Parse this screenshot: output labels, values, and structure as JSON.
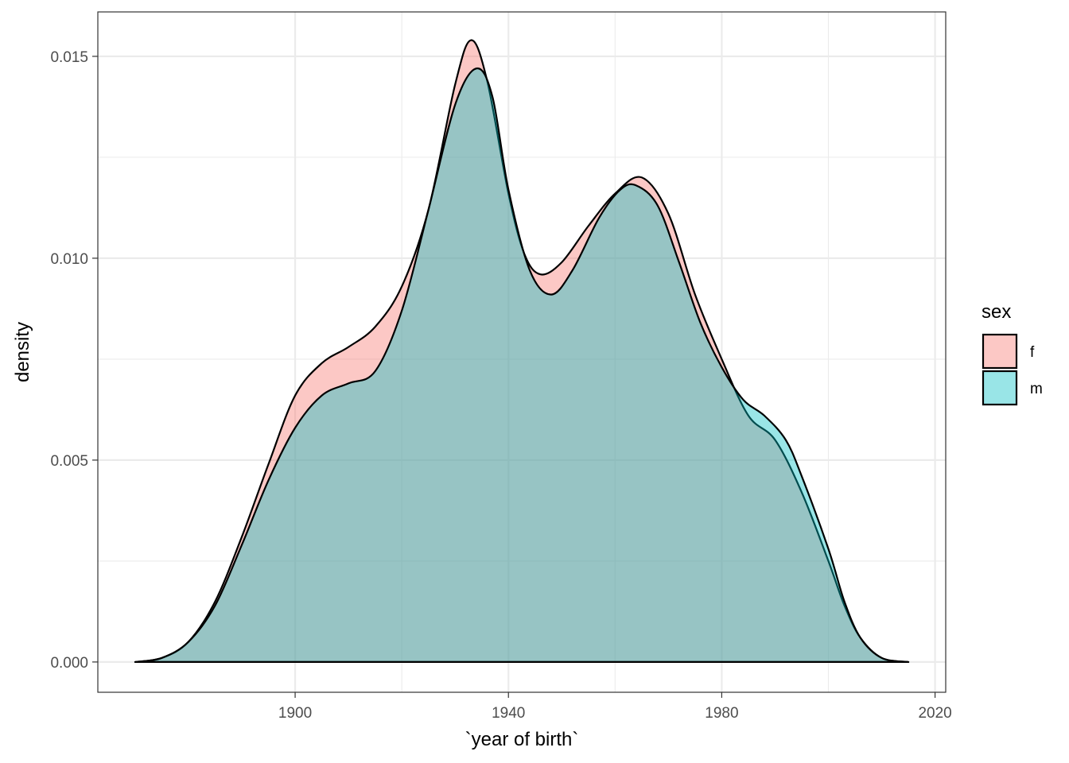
{
  "chart_data": {
    "type": "area",
    "subtype": "density",
    "xlabel": "`year of birth`",
    "ylabel": "density",
    "xlim": [
      1863,
      2022
    ],
    "ylim": [
      -0.00075,
      0.0161
    ],
    "x_ticks": [
      1900,
      1940,
      1980,
      2020
    ],
    "x_tick_labels": [
      "1900",
      "1940",
      "1980",
      "2020"
    ],
    "y_ticks": [
      0.0,
      0.005,
      0.01,
      0.015
    ],
    "y_tick_labels": [
      "0.000",
      "0.005",
      "0.010",
      "0.015"
    ],
    "grid": true,
    "legend": {
      "title": "sex",
      "position": "right"
    },
    "series": [
      {
        "name": "f",
        "color": "#F8766D",
        "points": [
          [
            1870,
            0.0
          ],
          [
            1875,
            0.0001
          ],
          [
            1880,
            0.0005
          ],
          [
            1885,
            0.0015
          ],
          [
            1890,
            0.0031
          ],
          [
            1895,
            0.0049
          ],
          [
            1900,
            0.0066
          ],
          [
            1905,
            0.0074
          ],
          [
            1910,
            0.0078
          ],
          [
            1915,
            0.0083
          ],
          [
            1920,
            0.0093
          ],
          [
            1925,
            0.0112
          ],
          [
            1930,
            0.0143
          ],
          [
            1933,
            0.0154
          ],
          [
            1936,
            0.0144
          ],
          [
            1940,
            0.0116
          ],
          [
            1943,
            0.0101
          ],
          [
            1946,
            0.0096
          ],
          [
            1950,
            0.0099
          ],
          [
            1955,
            0.0108
          ],
          [
            1960,
            0.0116
          ],
          [
            1965,
            0.012
          ],
          [
            1970,
            0.0111
          ],
          [
            1975,
            0.0091
          ],
          [
            1980,
            0.0075
          ],
          [
            1985,
            0.0061
          ],
          [
            1990,
            0.0055
          ],
          [
            1995,
            0.0042
          ],
          [
            2000,
            0.0025
          ],
          [
            2003,
            0.0014
          ],
          [
            2006,
            0.0006
          ],
          [
            2010,
            0.0001
          ],
          [
            2015,
            0.0
          ]
        ]
      },
      {
        "name": "m",
        "color": "#00BFC4",
        "points": [
          [
            1870,
            0.0
          ],
          [
            1875,
            0.0001
          ],
          [
            1880,
            0.0005
          ],
          [
            1885,
            0.0014
          ],
          [
            1890,
            0.0029
          ],
          [
            1895,
            0.0045
          ],
          [
            1900,
            0.0058
          ],
          [
            1905,
            0.0066
          ],
          [
            1910,
            0.0069
          ],
          [
            1915,
            0.0072
          ],
          [
            1920,
            0.0087
          ],
          [
            1925,
            0.0112
          ],
          [
            1930,
            0.0138
          ],
          [
            1934,
            0.0147
          ],
          [
            1937,
            0.014
          ],
          [
            1940,
            0.0117
          ],
          [
            1944,
            0.0097
          ],
          [
            1948,
            0.0091
          ],
          [
            1952,
            0.0097
          ],
          [
            1957,
            0.011
          ],
          [
            1961,
            0.0117
          ],
          [
            1964,
            0.0118
          ],
          [
            1968,
            0.0113
          ],
          [
            1972,
            0.0099
          ],
          [
            1976,
            0.0084
          ],
          [
            1980,
            0.0073
          ],
          [
            1984,
            0.0065
          ],
          [
            1988,
            0.0061
          ],
          [
            1992,
            0.0055
          ],
          [
            1995,
            0.0046
          ],
          [
            2000,
            0.0028
          ],
          [
            2003,
            0.0015
          ],
          [
            2006,
            0.0006
          ],
          [
            2010,
            0.0001
          ],
          [
            2015,
            0.0
          ]
        ]
      }
    ]
  }
}
